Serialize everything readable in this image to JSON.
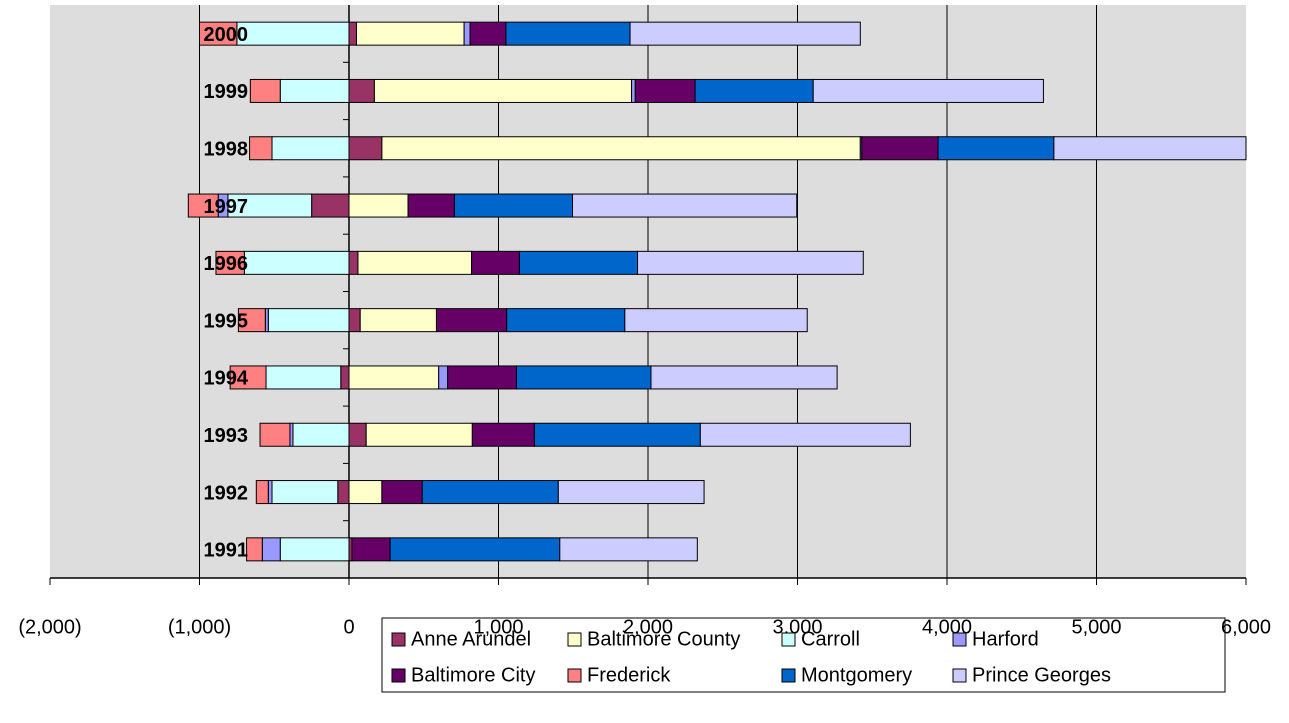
{
  "chart_data": {
    "type": "stacked_barh",
    "categories": [
      "1991",
      "1992",
      "1993",
      "1994",
      "1995",
      "1996",
      "1997",
      "1998",
      "1999",
      "2000"
    ],
    "series": [
      {
        "name": "Anne Arundel",
        "color": "#993366",
        "values": [
          20,
          -75,
          115,
          -55,
          75,
          60,
          -250,
          220,
          170,
          50
        ]
      },
      {
        "name": "Baltimore County",
        "color": "#ffffcc",
        "values": [
          0,
          220,
          710,
          600,
          510,
          760,
          395,
          3200,
          1720,
          720
        ]
      },
      {
        "name": "Carroll",
        "color": "#ccffff",
        "values": [
          -460,
          -440,
          -375,
          -500,
          -540,
          -700,
          -560,
          -515,
          -460,
          -750
        ]
      },
      {
        "name": "Harford",
        "color": "#9999ff",
        "values": [
          -120,
          -25,
          -20,
          60,
          -20,
          0,
          -65,
          10,
          25,
          40
        ]
      },
      {
        "name": "Baltimore City",
        "color": "#660066",
        "values": [
          255,
          270,
          415,
          460,
          470,
          320,
          310,
          510,
          400,
          240
        ]
      },
      {
        "name": "Frederick",
        "color": "#ff8080",
        "values": [
          -105,
          -80,
          -200,
          -240,
          -180,
          -190,
          -200,
          -150,
          -200,
          -250
        ]
      },
      {
        "name": "Montgomery",
        "color": "#0066cc",
        "values": [
          1135,
          910,
          1110,
          900,
          790,
          790,
          790,
          775,
          790,
          830
        ]
      },
      {
        "name": "Prince Georges",
        "color": "#ccccff",
        "values": [
          920,
          975,
          1405,
          1245,
          1220,
          1510,
          1500,
          1285,
          1540,
          1540
        ]
      }
    ],
    "xlim": [
      -2000,
      6000
    ],
    "xticks": [
      {
        "value": -2000,
        "label": "(2,000)"
      },
      {
        "value": -1000,
        "label": "(1,000)"
      },
      0,
      {
        "value": 1000,
        "label": "1,000"
      },
      {
        "value": 2000,
        "label": "2,000"
      },
      {
        "value": 3000,
        "label": "3,000"
      },
      {
        "value": 4000,
        "label": "4,000"
      },
      {
        "value": 5000,
        "label": "5,000"
      },
      {
        "value": 6000,
        "label": "6,000"
      }
    ],
    "grid": true,
    "legend": "bottom"
  }
}
